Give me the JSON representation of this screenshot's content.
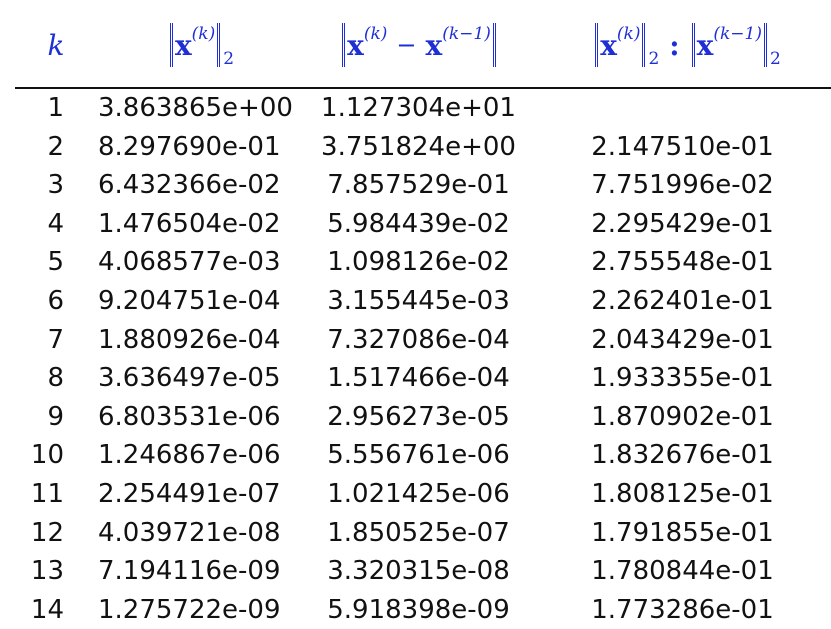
{
  "header": {
    "k": "k",
    "x_symbol": "x",
    "sup_k": "(k)",
    "sup_km1": "(k−1)",
    "minus": "−",
    "colon": ":",
    "sub_2": "2",
    "accent_color": "#1f2fd6"
  },
  "rows": [
    {
      "k": "1",
      "norm": "3.863865e+00",
      "diff": "1.127304e+01",
      "ratio": ""
    },
    {
      "k": "2",
      "norm": "8.297690e-01",
      "diff": "3.751824e+00",
      "ratio": "2.147510e-01"
    },
    {
      "k": "3",
      "norm": "6.432366e-02",
      "diff": "7.857529e-01",
      "ratio": "7.751996e-02"
    },
    {
      "k": "4",
      "norm": "1.476504e-02",
      "diff": "5.984439e-02",
      "ratio": "2.295429e-01"
    },
    {
      "k": "5",
      "norm": "4.068577e-03",
      "diff": "1.098126e-02",
      "ratio": "2.755548e-01"
    },
    {
      "k": "6",
      "norm": "9.204751e-04",
      "diff": "3.155445e-03",
      "ratio": "2.262401e-01"
    },
    {
      "k": "7",
      "norm": "1.880926e-04",
      "diff": "7.327086e-04",
      "ratio": "2.043429e-01"
    },
    {
      "k": "8",
      "norm": "3.636497e-05",
      "diff": "1.517466e-04",
      "ratio": "1.933355e-01"
    },
    {
      "k": "9",
      "norm": "6.803531e-06",
      "diff": "2.956273e-05",
      "ratio": "1.870902e-01"
    },
    {
      "k": "10",
      "norm": "1.246867e-06",
      "diff": "5.556761e-06",
      "ratio": "1.832676e-01"
    },
    {
      "k": "11",
      "norm": "2.254491e-07",
      "diff": "1.021425e-06",
      "ratio": "1.808125e-01"
    },
    {
      "k": "12",
      "norm": "4.039721e-08",
      "diff": "1.850525e-07",
      "ratio": "1.791855e-01"
    },
    {
      "k": "13",
      "norm": "7.194116e-09",
      "diff": "3.320315e-08",
      "ratio": "1.780844e-01"
    },
    {
      "k": "14",
      "norm": "1.275722e-09",
      "diff": "5.918398e-09",
      "ratio": "1.773286e-01"
    }
  ]
}
